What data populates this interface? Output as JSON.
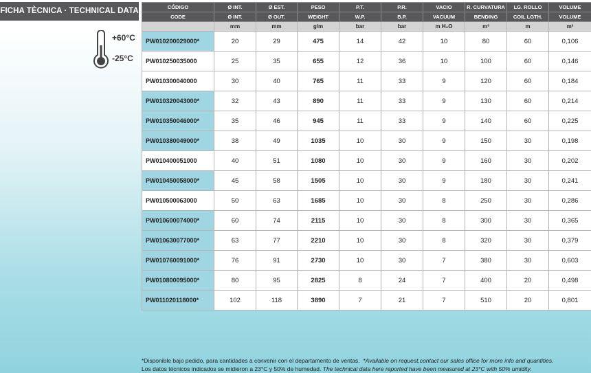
{
  "header": {
    "title": "FICHA TÈCNICA · TECHNICAL DATA"
  },
  "temperature": {
    "max": "+60°C",
    "min": "-25°C"
  },
  "table": {
    "header_es": [
      "CÓDIGO",
      "Ø INT.",
      "Ø EST.",
      "PESO",
      "P.T.",
      "P.R.",
      "VACIO",
      "R. CURVATURA",
      "LG. ROLLO",
      "VOLUME"
    ],
    "header_en": [
      "CODE",
      "Ø INT.",
      "Ø OUT.",
      "WEIGHT",
      "W.P.",
      "B.P.",
      "VACUUM",
      "BENDING",
      "COIL LGTH.",
      "VOLUME"
    ],
    "units": [
      null,
      "mm",
      "mm",
      "g/m",
      "bar",
      "bar",
      "m H₂O",
      "m³",
      "m",
      "m³"
    ],
    "highlighted": [
      true,
      false,
      false,
      true,
      true,
      true,
      false,
      true,
      false,
      true,
      true,
      true,
      true,
      true
    ],
    "rows": [
      [
        "PW010200029000*",
        "20",
        "29",
        "475",
        "14",
        "42",
        "10",
        "80",
        "60",
        "0,106"
      ],
      [
        "PW010250035000",
        "25",
        "35",
        "655",
        "12",
        "36",
        "10",
        "100",
        "60",
        "0,146"
      ],
      [
        "PW010300040000",
        "30",
        "40",
        "765",
        "11",
        "33",
        "9",
        "120",
        "60",
        "0,184"
      ],
      [
        "PW010320043000*",
        "32",
        "43",
        "890",
        "11",
        "33",
        "9",
        "130",
        "60",
        "0,214"
      ],
      [
        "PW010350046000*",
        "35",
        "46",
        "945",
        "11",
        "33",
        "9",
        "140",
        "60",
        "0,225"
      ],
      [
        "PW010380049000*",
        "38",
        "49",
        "1035",
        "10",
        "30",
        "9",
        "150",
        "30",
        "0,198"
      ],
      [
        "PW010400051000",
        "40",
        "51",
        "1080",
        "10",
        "30",
        "9",
        "160",
        "30",
        "0,202"
      ],
      [
        "PW010450058000*",
        "45",
        "58",
        "1505",
        "10",
        "30",
        "9",
        "180",
        "30",
        "0,241"
      ],
      [
        "PW010500063000",
        "50",
        "63",
        "1685",
        "10",
        "30",
        "8",
        "250",
        "30",
        "0,286"
      ],
      [
        "PW010600074000*",
        "60",
        "74",
        "2115",
        "10",
        "30",
        "8",
        "300",
        "30",
        "0,365"
      ],
      [
        "PW010630077000*",
        "63",
        "77",
        "2210",
        "10",
        "30",
        "8",
        "320",
        "30",
        "0,379"
      ],
      [
        "PW010760091000*",
        "76",
        "91",
        "2730",
        "10",
        "30",
        "7",
        "380",
        "30",
        "0,603"
      ],
      [
        "PW010800095000*",
        "80",
        "95",
        "2825",
        "8",
        "24",
        "7",
        "400",
        "20",
        "0,498"
      ],
      [
        "PW011020118000*",
        "102",
        "118",
        "3890",
        "7",
        "21",
        "7",
        "510",
        "20",
        "0,801"
      ]
    ]
  },
  "footer": {
    "lines": [
      {
        "spanish": "*Disponible bajo pedido, para cantidades a convenir con el departamento de ventas.",
        "english": "*Available on request,contact our sales office for more info and quantities."
      },
      {
        "spanish": "Los datos técnicos indicados se midieron a 23°C y 50% de humedad.",
        "english": "The technical data here reported have been measured at 23°C with 50% umidity."
      }
    ]
  }
}
